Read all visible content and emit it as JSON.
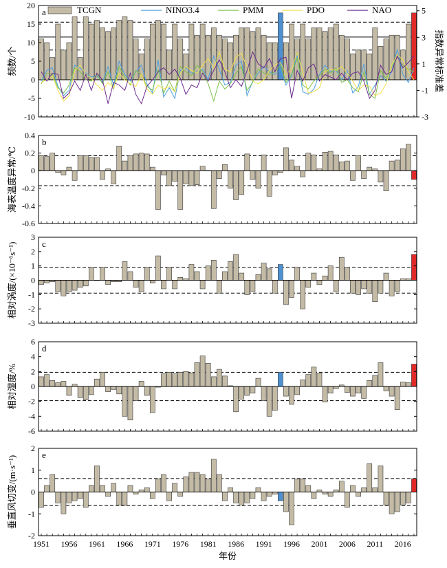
{
  "figure": {
    "x_axis_label": "年份",
    "x_ticks": [
      1951,
      1956,
      1961,
      1966,
      1971,
      1976,
      1981,
      1986,
      1991,
      1996,
      2001,
      2006,
      2011,
      2016
    ],
    "years_start": 1951,
    "years_end": 2018,
    "highlight_year_blue": 1994,
    "highlight_year_red": 2018,
    "colors": {
      "bar": "#c4bba6",
      "blue_bar": "#4f90d0",
      "red_bar": "#e02a2a"
    }
  },
  "chart_data": [
    {
      "type": "bar",
      "panel": "a",
      "ylabel": "频数/个",
      "ylabel_right": "指数异常标准差",
      "ylim": [
        -10,
        20
      ],
      "yticks": [
        -10,
        -5,
        0,
        5,
        10,
        15,
        20
      ],
      "ylim_right": [
        -3,
        5.4
      ],
      "yticks_right": [
        -3,
        -1,
        1,
        3,
        5
      ],
      "mean_line": 11.5,
      "threshold_lines": [
        15.5,
        8.0
      ],
      "legend": [
        "TCGN",
        "NINO3.4",
        "PMM",
        "PDO",
        "NAO"
      ],
      "legend_colors": [
        "#c4bba6",
        "#4a9fe0",
        "#7cc04a",
        "#f0e04a",
        "#6a2a8e"
      ],
      "x": [
        1951,
        1952,
        1953,
        1954,
        1955,
        1956,
        1957,
        1958,
        1959,
        1960,
        1961,
        1962,
        1963,
        1964,
        1965,
        1966,
        1967,
        1968,
        1969,
        1970,
        1971,
        1972,
        1973,
        1974,
        1975,
        1976,
        1977,
        1978,
        1979,
        1980,
        1981,
        1982,
        1983,
        1984,
        1985,
        1986,
        1987,
        1988,
        1989,
        1990,
        1991,
        1992,
        1993,
        1994,
        1995,
        1996,
        1997,
        1998,
        1999,
        2000,
        2001,
        2002,
        2003,
        2004,
        2005,
        2006,
        2007,
        2008,
        2009,
        2010,
        2011,
        2012,
        2013,
        2014,
        2015,
        2016,
        2017,
        2018
      ],
      "values": [
        11,
        10,
        6,
        15,
        8,
        10,
        17,
        6,
        17,
        15,
        16,
        14,
        13,
        14,
        16,
        17,
        16,
        11,
        7,
        11,
        15,
        16,
        15,
        8,
        15,
        11,
        7,
        15,
        12,
        15,
        12,
        14,
        12,
        11,
        10,
        12,
        14,
        14,
        13,
        14,
        12,
        10,
        10,
        18,
        10,
        15,
        11,
        15,
        11,
        14,
        14,
        13,
        14,
        15,
        12,
        11,
        7,
        8,
        8,
        7,
        14,
        9,
        11,
        12,
        12,
        8,
        15,
        18
      ],
      "indices": [
        {
          "name": "NINO3.4",
          "values": [
            -0.3,
            0.5,
            0.7,
            -0.7,
            -1.4,
            -1.0,
            0.9,
            0.7,
            0.3,
            0.0,
            0.1,
            -0.4,
            0.8,
            -0.6,
            1.2,
            0.2,
            -0.3,
            0.4,
            0.9,
            -0.5,
            -1.2,
            1.3,
            -1.5,
            -0.8,
            -1.6,
            0.5,
            0.7,
            0.3,
            0.4,
            0.6,
            -0.2,
            1.6,
            0.6,
            -0.6,
            -0.4,
            0.9,
            1.2,
            -1.4,
            -0.3,
            0.3,
            0.8,
            0.4,
            0.2,
            0.6,
            -0.6,
            0.1,
            1.7,
            -1.1,
            -1.3,
            -0.9,
            0.2,
            0.9,
            0.4,
            0.5,
            -0.2,
            0.5,
            -1.2,
            -0.7,
            1.0,
            -1.3,
            -0.6,
            0.1,
            -0.3,
            0.4,
            2.1,
            0.2,
            -0.4,
            0.7
          ]
        },
        {
          "name": "PMM",
          "values": [
            -0.5,
            0.3,
            0.2,
            -0.8,
            -1.2,
            -0.6,
            0.7,
            0.4,
            -0.2,
            -0.3,
            0.2,
            -0.5,
            0.4,
            -0.9,
            0.8,
            0.0,
            -0.6,
            0.5,
            0.2,
            -0.7,
            -1.0,
            0.6,
            -1.2,
            -0.3,
            -1.1,
            0.8,
            0.4,
            0.1,
            0.9,
            0.4,
            -0.5,
            -1.8,
            -0.3,
            -0.9,
            -0.5,
            0.3,
            0.8,
            -1.0,
            -0.4,
            0.6,
            0.3,
            0.2,
            0.4,
            0.9,
            -0.4,
            0.2,
            1.4,
            -0.6,
            -0.9,
            -0.3,
            0.1,
            0.6,
            0.3,
            0.7,
            -0.4,
            -0.2,
            -0.8,
            -1.1,
            0.4,
            -1.3,
            -1.6,
            0.5,
            -0.1,
            0.8,
            1.5,
            0.9,
            0.6,
            0.4
          ]
        },
        {
          "name": "PDO",
          "values": [
            -0.4,
            -0.2,
            0.1,
            -1.0,
            -1.8,
            -1.4,
            0.5,
            0.9,
            0.2,
            -0.1,
            -0.6,
            -1.0,
            -0.4,
            -0.8,
            0.3,
            -0.2,
            -0.5,
            -0.7,
            0.2,
            -0.9,
            -1.3,
            -0.6,
            -0.9,
            -0.7,
            -1.1,
            0.3,
            0.8,
            0.5,
            0.3,
            0.9,
            1.4,
            0.7,
            1.9,
            0.6,
            0.4,
            1.5,
            1.8,
            0.8,
            -0.3,
            -0.5,
            -0.2,
            0.5,
            0.9,
            1.1,
            0.2,
            0.6,
            1.8,
            0.4,
            -1.2,
            -1.1,
            -0.8,
            0.4,
            0.6,
            0.5,
            0.8,
            0.3,
            -0.3,
            -1.0,
            -0.6,
            -0.7,
            -1.4,
            -1.2,
            -0.5,
            0.9,
            1.7,
            1.3,
            0.4,
            -0.2
          ]
        },
        {
          "name": "NAO",
          "values": [
            0.4,
            -0.3,
            0.3,
            0.2,
            -1.6,
            -1.2,
            -0.3,
            -1.0,
            0.2,
            -1.0,
            0.3,
            -0.2,
            -2.0,
            -0.4,
            -0.6,
            -1.0,
            0.3,
            -1.3,
            -2.0,
            -0.7,
            -0.2,
            0.4,
            0.7,
            0.2,
            0.6,
            -0.1,
            -1.3,
            -0.6,
            -0.8,
            0.3,
            -0.3,
            0.5,
            1.3,
            0.4,
            -0.8,
            -0.2,
            -0.7,
            0.5,
            1.9,
            1.0,
            0.7,
            1.4,
            0.4,
            1.4,
            1.5,
            -1.6,
            0.5,
            -0.3,
            0.7,
            1.0,
            -0.3,
            0.2,
            0.0,
            -0.2,
            0.3,
            -0.2,
            0.3,
            0.4,
            -0.3,
            -1.6,
            -1.0,
            0.9,
            0.2,
            0.4,
            1.6,
            0.7,
            1.1,
            1.6
          ]
        }
      ]
    },
    {
      "type": "bar",
      "panel": "b",
      "ylabel": "海表温度异常/℃",
      "ylim": [
        -0.6,
        0.4
      ],
      "yticks": [
        -0.6,
        -0.4,
        -0.2,
        0,
        0.2,
        0.4
      ],
      "threshold_lines": [
        0.17,
        -0.17
      ],
      "x_start": 1951,
      "values": [
        0.17,
        0.16,
        0.2,
        -0.02,
        -0.05,
        0.04,
        -0.11,
        0.17,
        0.17,
        0.15,
        0.15,
        -0.1,
        0.02,
        -0.15,
        0.28,
        0.11,
        0.17,
        0.19,
        0.2,
        0.19,
        0.04,
        -0.44,
        -0.05,
        -0.17,
        -0.12,
        -0.44,
        -0.15,
        -0.17,
        -0.16,
        0.05,
        0.0,
        -0.43,
        -0.09,
        0.07,
        -0.2,
        -0.33,
        -0.27,
        0.19,
        -0.1,
        -0.2,
        0.18,
        -0.29,
        -0.05,
        -0.02,
        0.26,
        0.12,
        0.05,
        -0.07,
        0.2,
        0.18,
        0.02,
        0.21,
        0.22,
        0.18,
        0.1,
        0.11,
        -0.11,
        0.17,
        -0.09,
        0.04,
        0.02,
        -0.13,
        -0.23,
        0.11,
        0.12,
        0.25,
        0.3,
        -0.1
      ]
    },
    {
      "type": "bar",
      "panel": "c",
      "ylabel": "相对涡度/(×10⁻⁶s⁻¹)",
      "ylim": [
        -3,
        3
      ],
      "yticks": [
        -3,
        -2,
        -1,
        0,
        1,
        2,
        3
      ],
      "threshold_lines": [
        0.9,
        -0.9
      ],
      "x_start": 1951,
      "values": [
        -0.3,
        -0.2,
        -0.1,
        -0.8,
        -1.1,
        -0.8,
        -0.7,
        -0.5,
        -0.4,
        0.9,
        0.0,
        0.9,
        -0.3,
        -0.1,
        -0.1,
        1.3,
        0.6,
        -0.5,
        -0.8,
        0.9,
        -0.2,
        1.7,
        -0.6,
        0.9,
        -0.6,
        0.2,
        0.1,
        1.1,
        0.6,
        -0.6,
        1.0,
        1.4,
        -0.9,
        0.6,
        1.3,
        1.8,
        0.5,
        -1.0,
        -0.8,
        0.4,
        1.2,
        0.8,
        -0.9,
        1.1,
        -1.7,
        -1.2,
        0.9,
        -2.0,
        -0.5,
        0.5,
        -0.3,
        0.3,
        1.0,
        -0.8,
        1.6,
        0.9,
        -0.9,
        -1.0,
        -0.6,
        -0.9,
        -1.5,
        -0.9,
        0.5,
        -1.1,
        -0.8,
        0.1,
        0.1,
        1.8
      ]
    },
    {
      "type": "bar",
      "panel": "d",
      "ylabel": "相对湿度/%",
      "ylim": [
        -6,
        6
      ],
      "yticks": [
        -6,
        -4,
        -2,
        0,
        2,
        4,
        6
      ],
      "threshold_lines": [
        1.9,
        -1.9
      ],
      "x_start": 1951,
      "values": [
        1.3,
        1.6,
        0.8,
        0.5,
        0.7,
        -1.2,
        0.3,
        -1.5,
        -1.8,
        -1.1,
        1.0,
        1.9,
        -0.7,
        -0.4,
        -1.0,
        -4.0,
        -4.5,
        -1.9,
        0.7,
        -1.2,
        -3.5,
        -0.1,
        1.7,
        1.9,
        1.7,
        1.9,
        2.0,
        1.8,
        3.2,
        4.1,
        3.1,
        1.3,
        2.3,
        1.4,
        0.1,
        -3.4,
        -1.7,
        -1.2,
        -0.9,
        1.1,
        -1.9,
        -4.0,
        -3.2,
        1.9,
        -1.3,
        -2.4,
        -1.1,
        0.9,
        1.6,
        2.6,
        1.8,
        -2.1,
        -0.9,
        -0.3,
        0.2,
        -0.8,
        -1.3,
        -0.9,
        -1.6,
        0.8,
        1.5,
        3.2,
        -0.6,
        -1.3,
        -3.1,
        0.6,
        0.5,
        3.0
      ]
    },
    {
      "type": "bar",
      "panel": "e",
      "ylabel": "垂直风切变/(m·s⁻¹)",
      "ylim": [
        -2,
        2
      ],
      "yticks": [
        -2,
        -1,
        0,
        1,
        2
      ],
      "threshold_lines": [
        0.62,
        -0.62
      ],
      "x_start": 1951,
      "values": [
        -0.7,
        0.3,
        0.8,
        -0.5,
        -1.0,
        -0.5,
        -0.4,
        -0.3,
        -0.7,
        0.3,
        1.2,
        0.3,
        -0.2,
        0.4,
        -0.6,
        -0.6,
        0.3,
        -0.1,
        0.1,
        0.2,
        -0.3,
        0.6,
        0.8,
        -0.4,
        0.4,
        -0.2,
        0.7,
        0.9,
        0.9,
        0.8,
        0.6,
        1.5,
        0.8,
        -0.4,
        0.2,
        -0.5,
        -0.6,
        -0.5,
        -0.3,
        0.2,
        -0.4,
        -0.2,
        -0.1,
        -0.4,
        -0.9,
        -1.5,
        0.6,
        0.6,
        0.3,
        -0.3,
        0.1,
        -0.1,
        -0.2,
        0.1,
        0.5,
        -0.7,
        0.3,
        -0.2,
        0.2,
        1.3,
        0.2,
        1.2,
        -0.6,
        -1.0,
        -0.9,
        -0.6,
        -0.5,
        0.6
      ]
    }
  ]
}
